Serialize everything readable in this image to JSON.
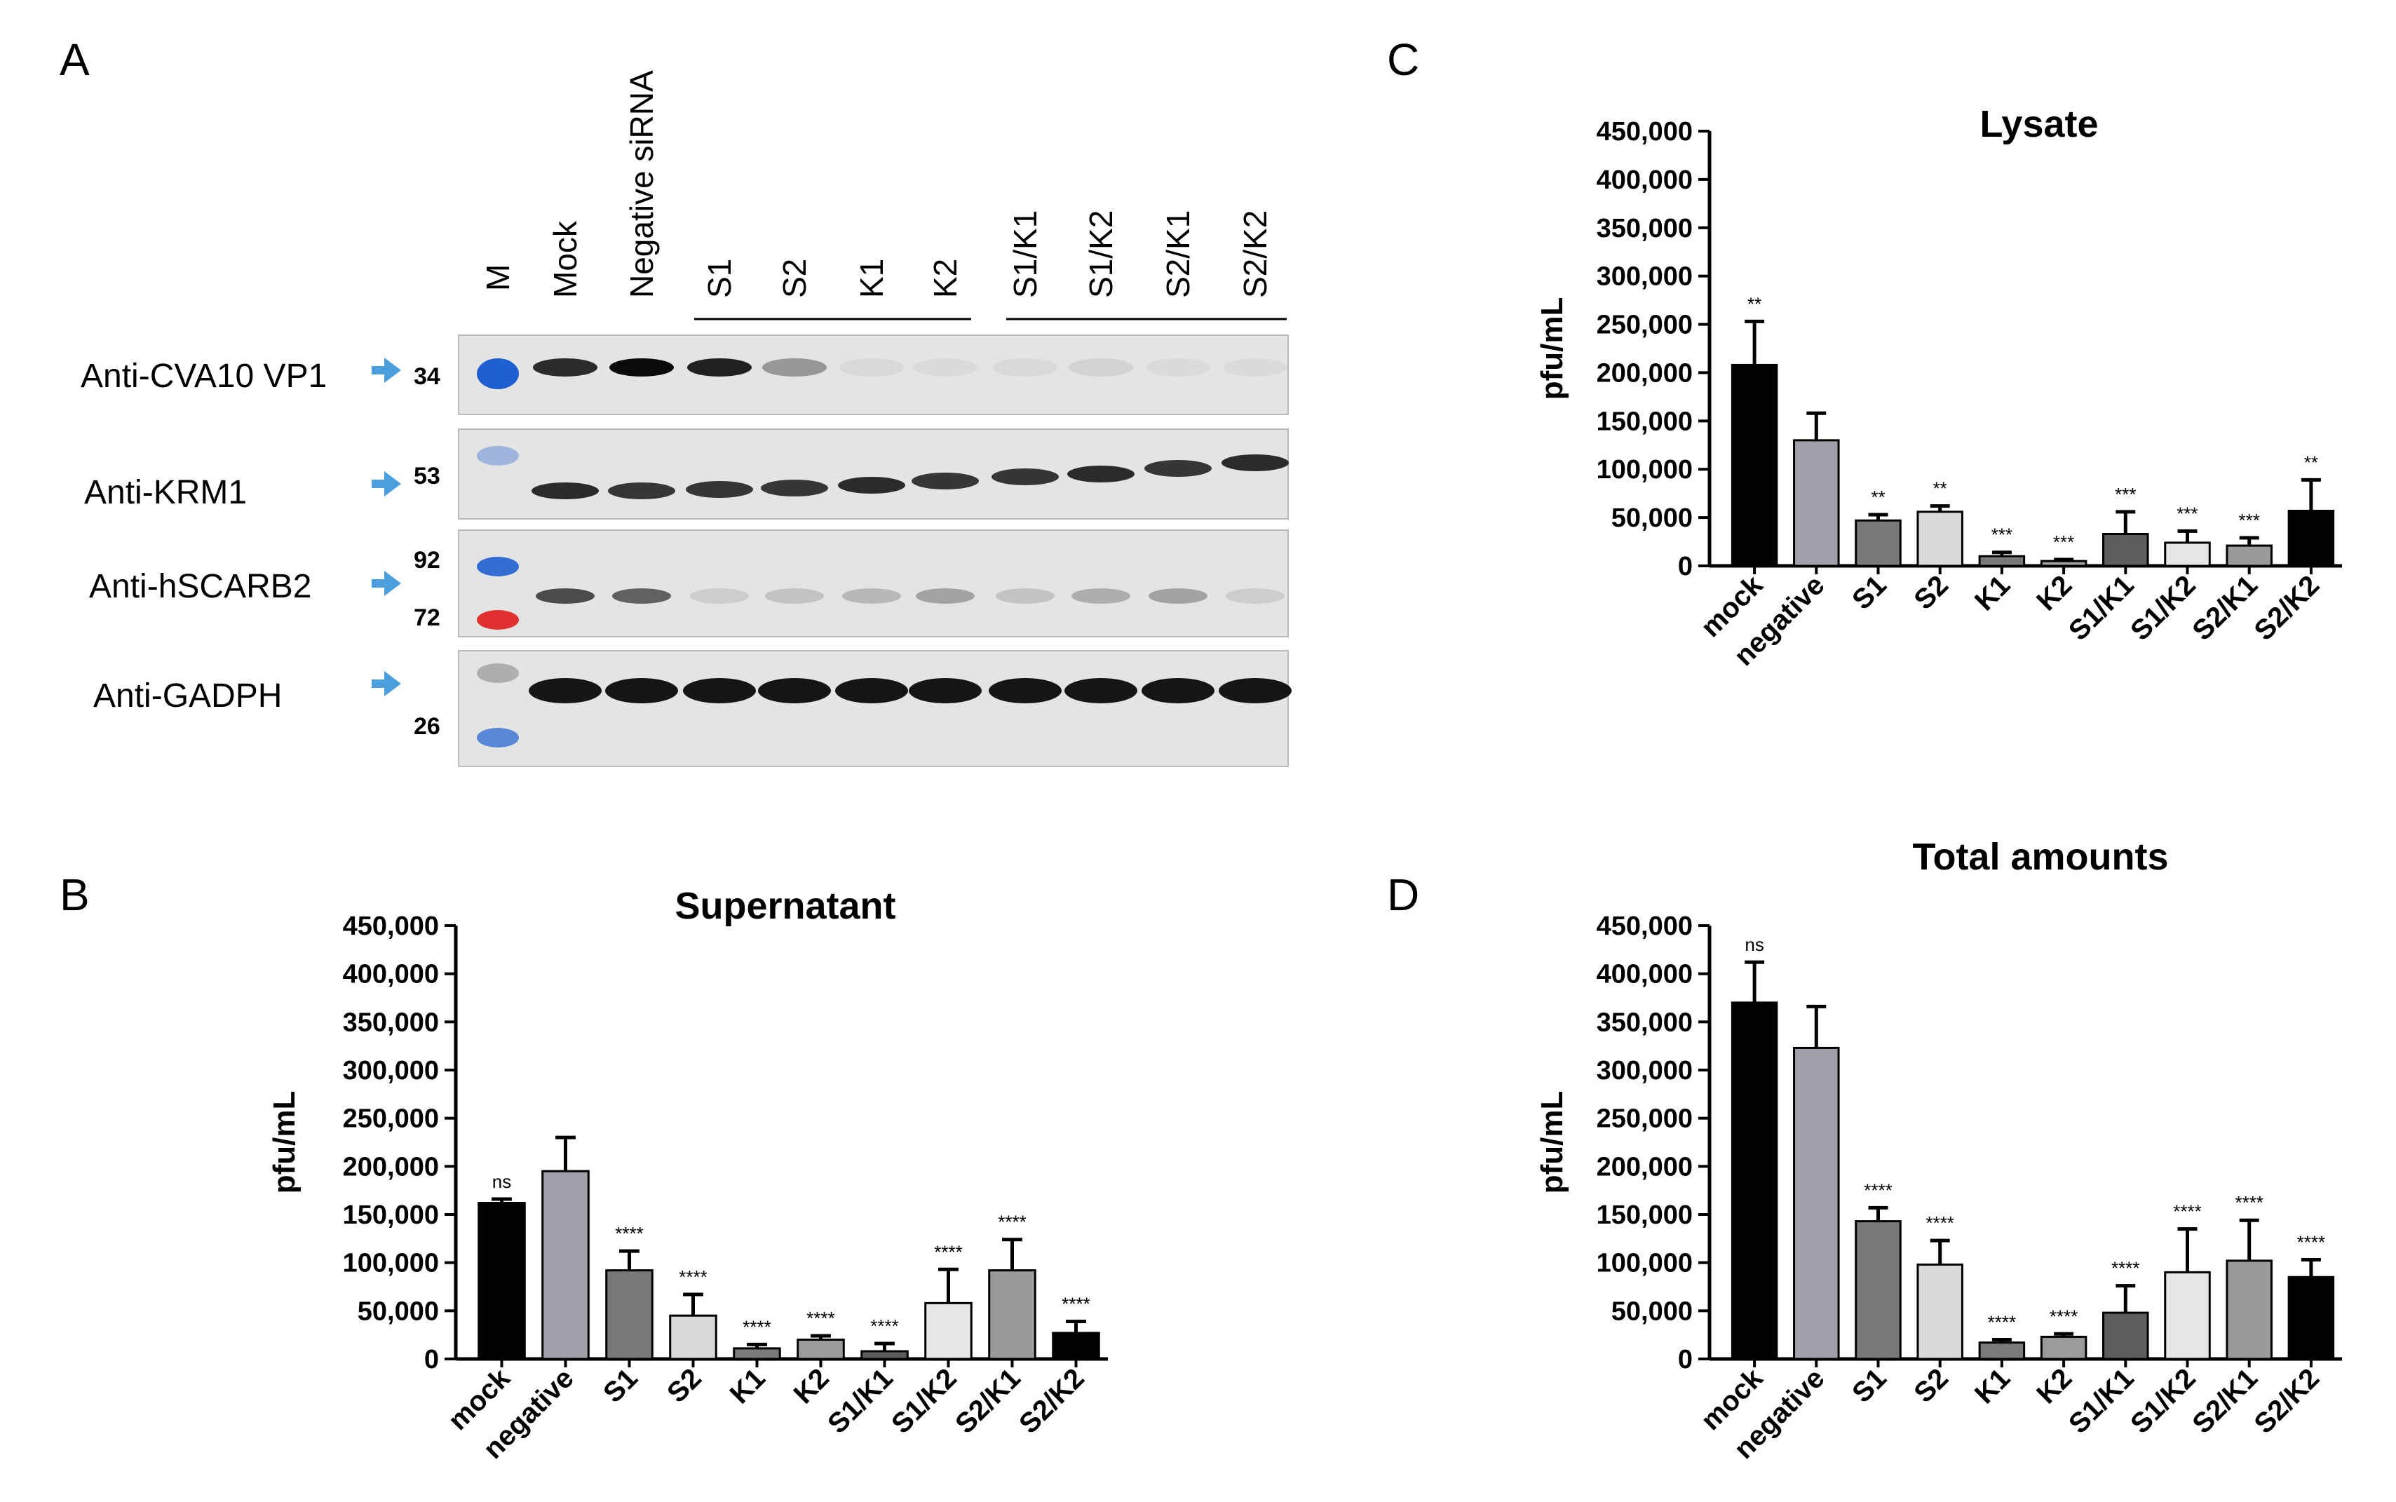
{
  "panels": {
    "a": "A",
    "b": "B",
    "c": "C",
    "d": "D"
  },
  "western_blot": {
    "marker_lane": "M",
    "lanes": [
      "Mock",
      "Negative siRNA",
      "S1",
      "S2",
      "K1",
      "K2",
      "S1/K1",
      "S1/K2",
      "S2/K1",
      "S2/K2"
    ],
    "rows": [
      {
        "label": "Anti-CVA10 VP1",
        "markers": [
          "34"
        ]
      },
      {
        "label": "Anti-KRM1",
        "markers": [
          "53"
        ]
      },
      {
        "label": "Anti-hSCARB2",
        "markers": [
          "92",
          "72"
        ]
      },
      {
        "label": "Anti-GADPH",
        "markers": [
          "26"
        ]
      }
    ],
    "colors": {
      "arrow": "#4a9fdc",
      "marker_blue": "#1f5fd1",
      "marker_red": "#e03030",
      "membrane": "#e4e4e4",
      "band": "#0a0a0a"
    }
  },
  "chart_data": [
    {
      "panel": "B",
      "type": "bar",
      "title": "Supernatant",
      "ylabel": "pfu/mL",
      "xlabel": "",
      "ylim": [
        0,
        450000
      ],
      "yticks": [
        "0",
        "50,000",
        "100,000",
        "150,000",
        "200,000",
        "250,000",
        "300,000",
        "350,000",
        "400,000",
        "450,000"
      ],
      "categories": [
        "mock",
        "negative",
        "S1",
        "S2",
        "K1",
        "K2",
        "S1/K1",
        "S1/K2",
        "S2/K1",
        "S2/K2"
      ],
      "values": [
        162000,
        195000,
        92000,
        45000,
        11000,
        20000,
        8000,
        58000,
        92000,
        27000
      ],
      "errors": [
        4000,
        35000,
        20000,
        22000,
        4000,
        4000,
        8000,
        35000,
        32000,
        12000
      ],
      "significance": [
        "ns",
        "",
        "****",
        "****",
        "****",
        "****",
        "****",
        "****",
        "****",
        "****"
      ]
    },
    {
      "panel": "C",
      "type": "bar",
      "title": "Lysate",
      "ylabel": "pfu/mL",
      "xlabel": "",
      "ylim": [
        0,
        450000
      ],
      "yticks": [
        "0",
        "50,000",
        "100,000",
        "150,000",
        "200,000",
        "250,000",
        "300,000",
        "350,000",
        "400,000",
        "450,000"
      ],
      "categories": [
        "mock",
        "negative",
        "S1",
        "S2",
        "K1",
        "K2",
        "S1/K1",
        "S1/K2",
        "S2/K1",
        "S2/K2"
      ],
      "values": [
        208000,
        130000,
        47000,
        56000,
        10000,
        5000,
        33000,
        24000,
        21000,
        57000
      ],
      "errors": [
        45000,
        28000,
        6000,
        6000,
        4000,
        1500,
        23000,
        12000,
        8000,
        32000
      ],
      "significance": [
        "**",
        "",
        "**",
        "**",
        "***",
        "***",
        "***",
        "***",
        "***",
        "**"
      ]
    },
    {
      "panel": "D",
      "type": "bar",
      "title": "Total amounts",
      "ylabel": "pfu/mL",
      "xlabel": "",
      "ylim": [
        0,
        450000
      ],
      "yticks": [
        "0",
        "50,000",
        "100,000",
        "150,000",
        "200,000",
        "250,000",
        "300,000",
        "350,000",
        "400,000",
        "450,000"
      ],
      "categories": [
        "mock",
        "negative",
        "S1",
        "S2",
        "K1",
        "K2",
        "S1/K1",
        "S1/K2",
        "S2/K1",
        "S2/K2"
      ],
      "values": [
        370000,
        323000,
        143000,
        98000,
        17000,
        23000,
        48000,
        90000,
        102000,
        85000
      ],
      "errors": [
        42000,
        43000,
        14000,
        25000,
        3000,
        3000,
        28000,
        45000,
        42000,
        18000
      ],
      "significance": [
        "ns",
        "",
        "****",
        "****",
        "****",
        "****",
        "****",
        "****",
        "****",
        "****"
      ]
    }
  ],
  "bar_colors": [
    "#000000",
    "#a0a0a8",
    "#787878",
    "#d9d9d9",
    "#7a7a7a",
    "#9b9b9b",
    "#5e5e5e",
    "#e6e6e6",
    "#9a9a9a",
    "#000000"
  ]
}
